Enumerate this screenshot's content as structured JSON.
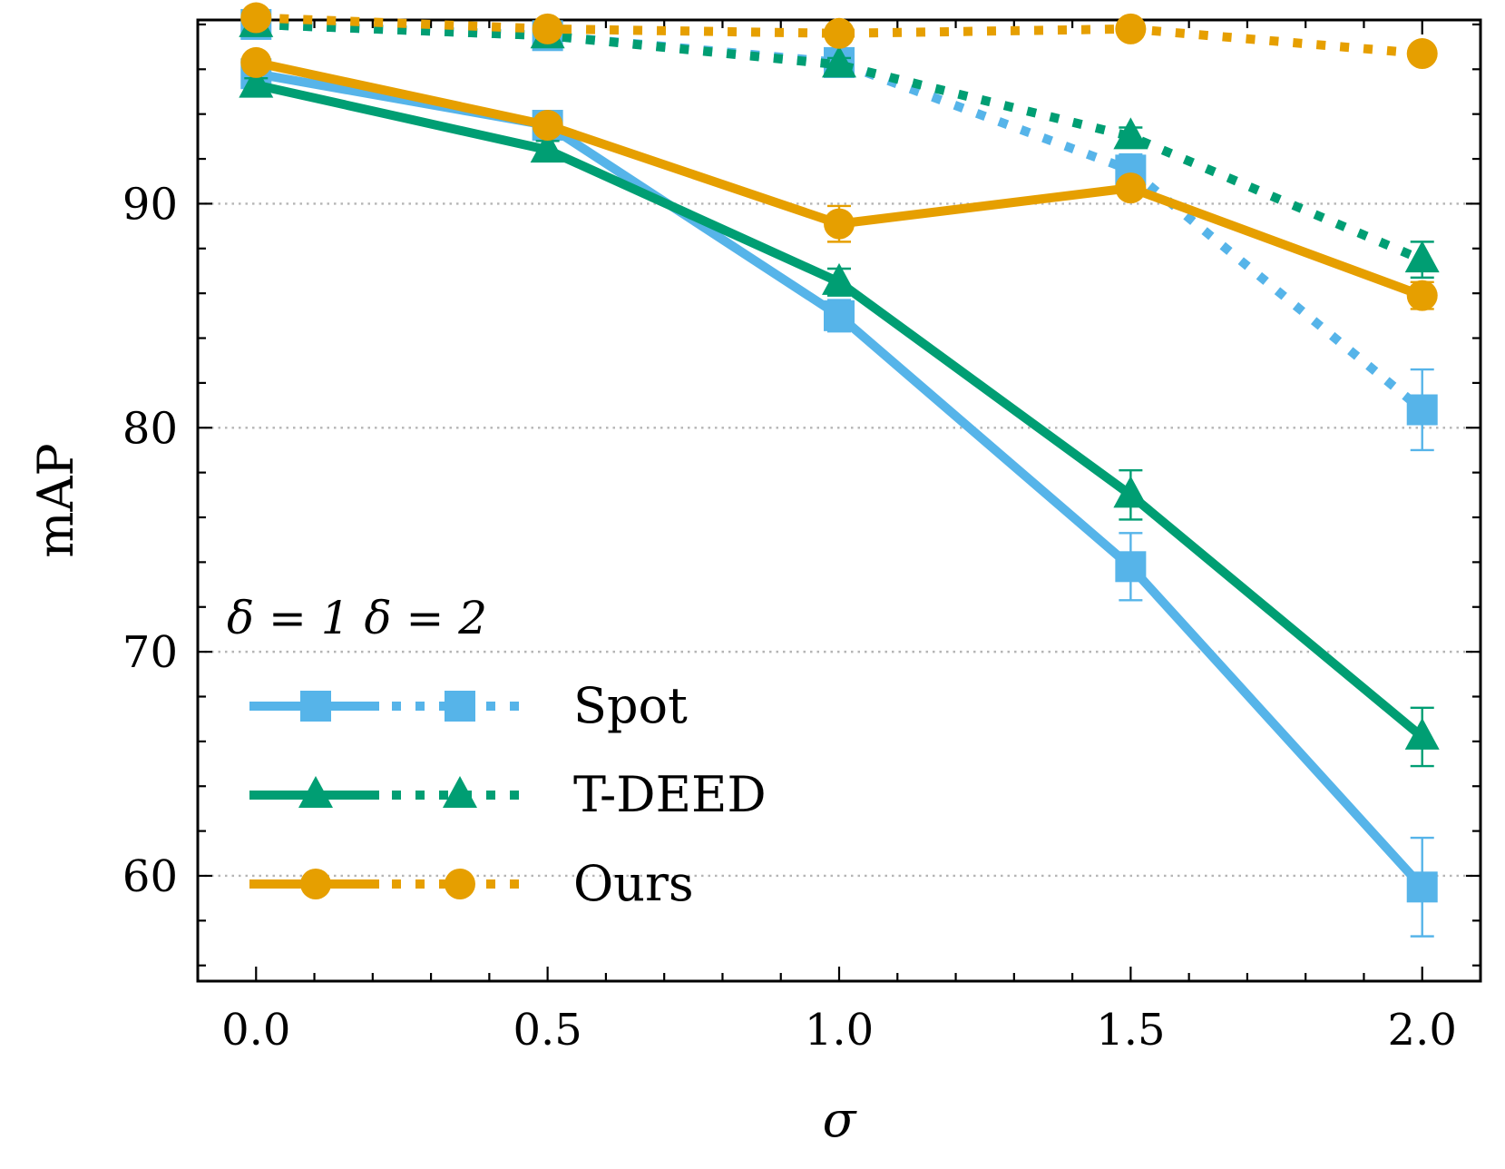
{
  "chart_data": {
    "type": "line",
    "title": "",
    "xlabel": "σ",
    "ylabel": "mAP",
    "xlim": [
      -0.1,
      2.1
    ],
    "ylim": [
      55.3,
      98.2
    ],
    "x_ticks": [
      "0.0",
      "0.5",
      "1.0",
      "1.5",
      "2.0"
    ],
    "y_ticks": [
      "60",
      "70",
      "80",
      "90"
    ],
    "grid": "horizontal dotted at major y ticks",
    "legend": {
      "placement": "lower-left",
      "header": "δ = 1  δ = 2",
      "entries": [
        "Spot",
        "T-DEED",
        "Ours"
      ]
    },
    "x": [
      0.0,
      0.5,
      1.0,
      1.5,
      2.0
    ],
    "series": [
      {
        "name": "Spot",
        "delta": "δ = 1",
        "style": "solid",
        "marker": "square",
        "color": "#56B4E9",
        "values": [
          95.8,
          93.5,
          85.0,
          73.8,
          59.5
        ],
        "errors": [
          0.3,
          0.4,
          0.7,
          1.5,
          2.2
        ]
      },
      {
        "name": "Spot",
        "delta": "δ = 2",
        "style": "dotted",
        "marker": "square",
        "color": "#56B4E9",
        "values": [
          98.0,
          97.5,
          96.3,
          91.5,
          80.8
        ],
        "errors": [
          0.2,
          0.2,
          0.3,
          0.7,
          1.8
        ]
      },
      {
        "name": "T-DEED",
        "delta": "δ = 1",
        "style": "solid",
        "marker": "triangle",
        "color": "#009E73",
        "values": [
          95.3,
          92.4,
          86.5,
          77.0,
          66.2
        ],
        "errors": [
          0.3,
          0.4,
          0.6,
          1.1,
          1.3
        ]
      },
      {
        "name": "T-DEED",
        "delta": "δ = 2",
        "style": "dotted",
        "marker": "triangle",
        "color": "#009E73",
        "values": [
          98.0,
          97.5,
          96.2,
          93.0,
          87.5
        ],
        "errors": [
          0.2,
          0.2,
          0.3,
          0.4,
          0.8
        ]
      },
      {
        "name": "Ours",
        "delta": "δ = 1",
        "style": "solid",
        "marker": "circle",
        "color": "#E69F00",
        "values": [
          96.3,
          93.5,
          89.1,
          90.7,
          85.9
        ],
        "errors": [
          0.3,
          0.3,
          0.8,
          0.4,
          0.6
        ]
      },
      {
        "name": "Ours",
        "delta": "δ = 2",
        "style": "dotted",
        "marker": "circle",
        "color": "#E69F00",
        "values": [
          98.3,
          97.8,
          97.6,
          97.8,
          96.7
        ],
        "errors": [
          0.2,
          0.2,
          0.2,
          0.2,
          0.3
        ]
      }
    ]
  }
}
